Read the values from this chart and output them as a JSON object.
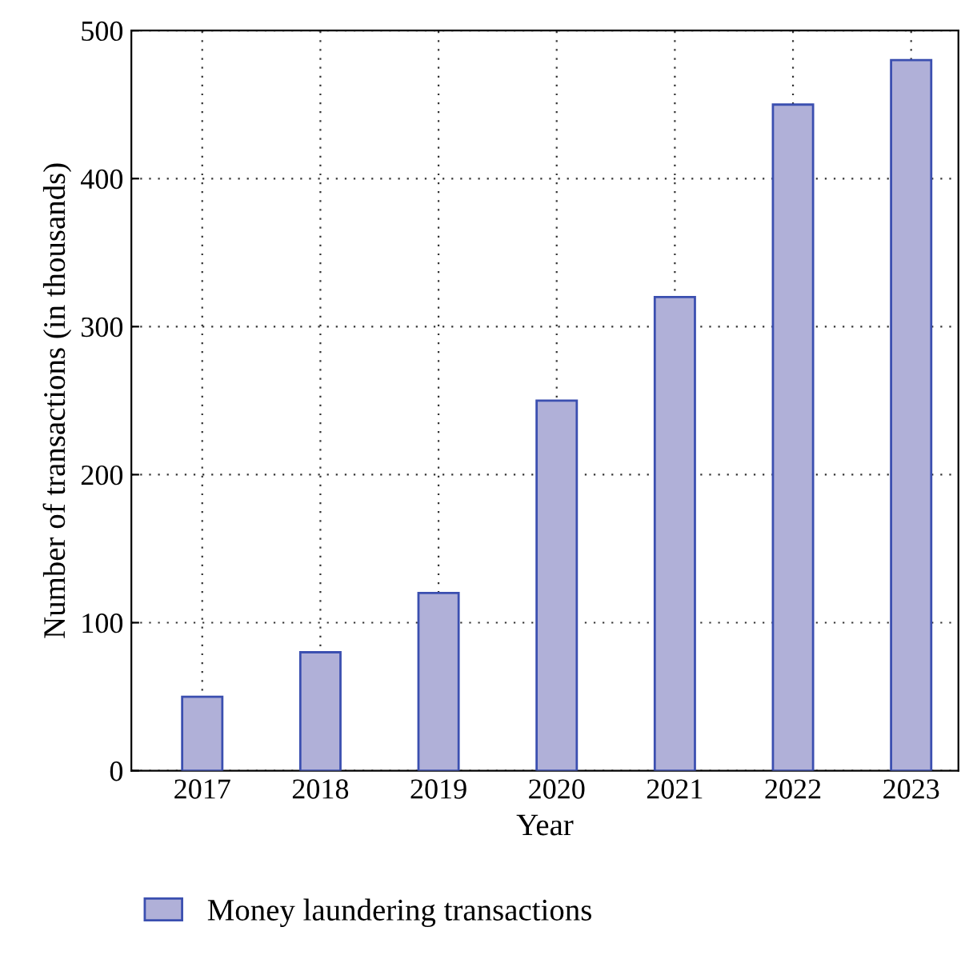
{
  "chart_data": {
    "type": "bar",
    "xlabel": "Year",
    "ylabel": "Number of transactions (in thousands)",
    "categories": [
      "2017",
      "2018",
      "2019",
      "2020",
      "2021",
      "2022",
      "2023"
    ],
    "series": [
      {
        "name": "Money laundering transactions",
        "color": "#b0b0d8",
        "values": [
          50,
          80,
          120,
          250,
          320,
          450,
          480
        ]
      }
    ],
    "ylim": [
      0,
      500
    ],
    "yticks": [
      0,
      100,
      200,
      300,
      400,
      500
    ],
    "grid": true,
    "legend": "bottom"
  }
}
